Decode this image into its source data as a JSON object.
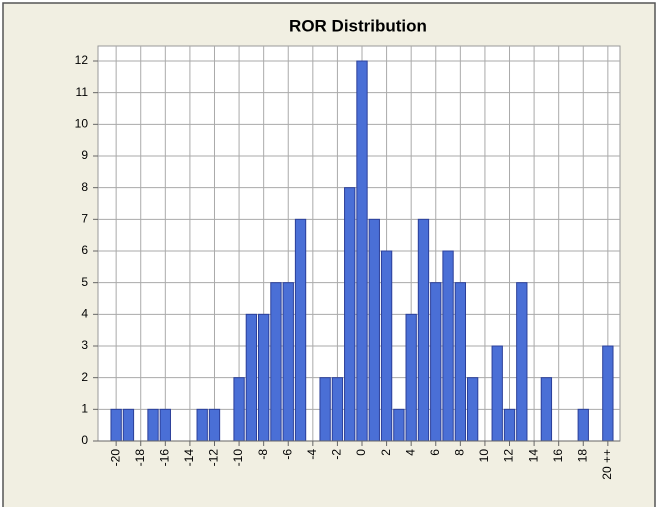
{
  "chart_data": {
    "type": "bar",
    "title": "ROR Distribution",
    "categories": [
      "-20",
      null,
      "-18",
      null,
      "-16",
      null,
      "-14",
      null,
      "-12",
      null,
      "-10",
      null,
      "-8",
      null,
      "-6",
      null,
      "-4",
      null,
      "-2",
      null,
      "0",
      null,
      "2",
      null,
      "4",
      null,
      "6",
      null,
      "8",
      null,
      "10",
      null,
      "12",
      null,
      "14",
      null,
      "16",
      null,
      "18",
      null,
      "20 ++"
    ],
    "values": [
      1,
      1,
      0,
      1,
      1,
      0,
      0,
      1,
      1,
      0,
      2,
      4,
      4,
      5,
      5,
      7,
      0,
      2,
      2,
      8,
      12,
      7,
      6,
      1,
      4,
      7,
      5,
      6,
      5,
      2,
      0,
      3,
      1,
      5,
      0,
      2,
      0,
      0,
      1,
      0,
      3
    ],
    "color": "#4a6fd6",
    "ylim": [
      0,
      12
    ],
    "yticks": [
      0,
      1,
      2,
      3,
      4,
      5,
      6,
      7,
      8,
      9,
      10,
      11,
      12
    ],
    "grid": true
  }
}
